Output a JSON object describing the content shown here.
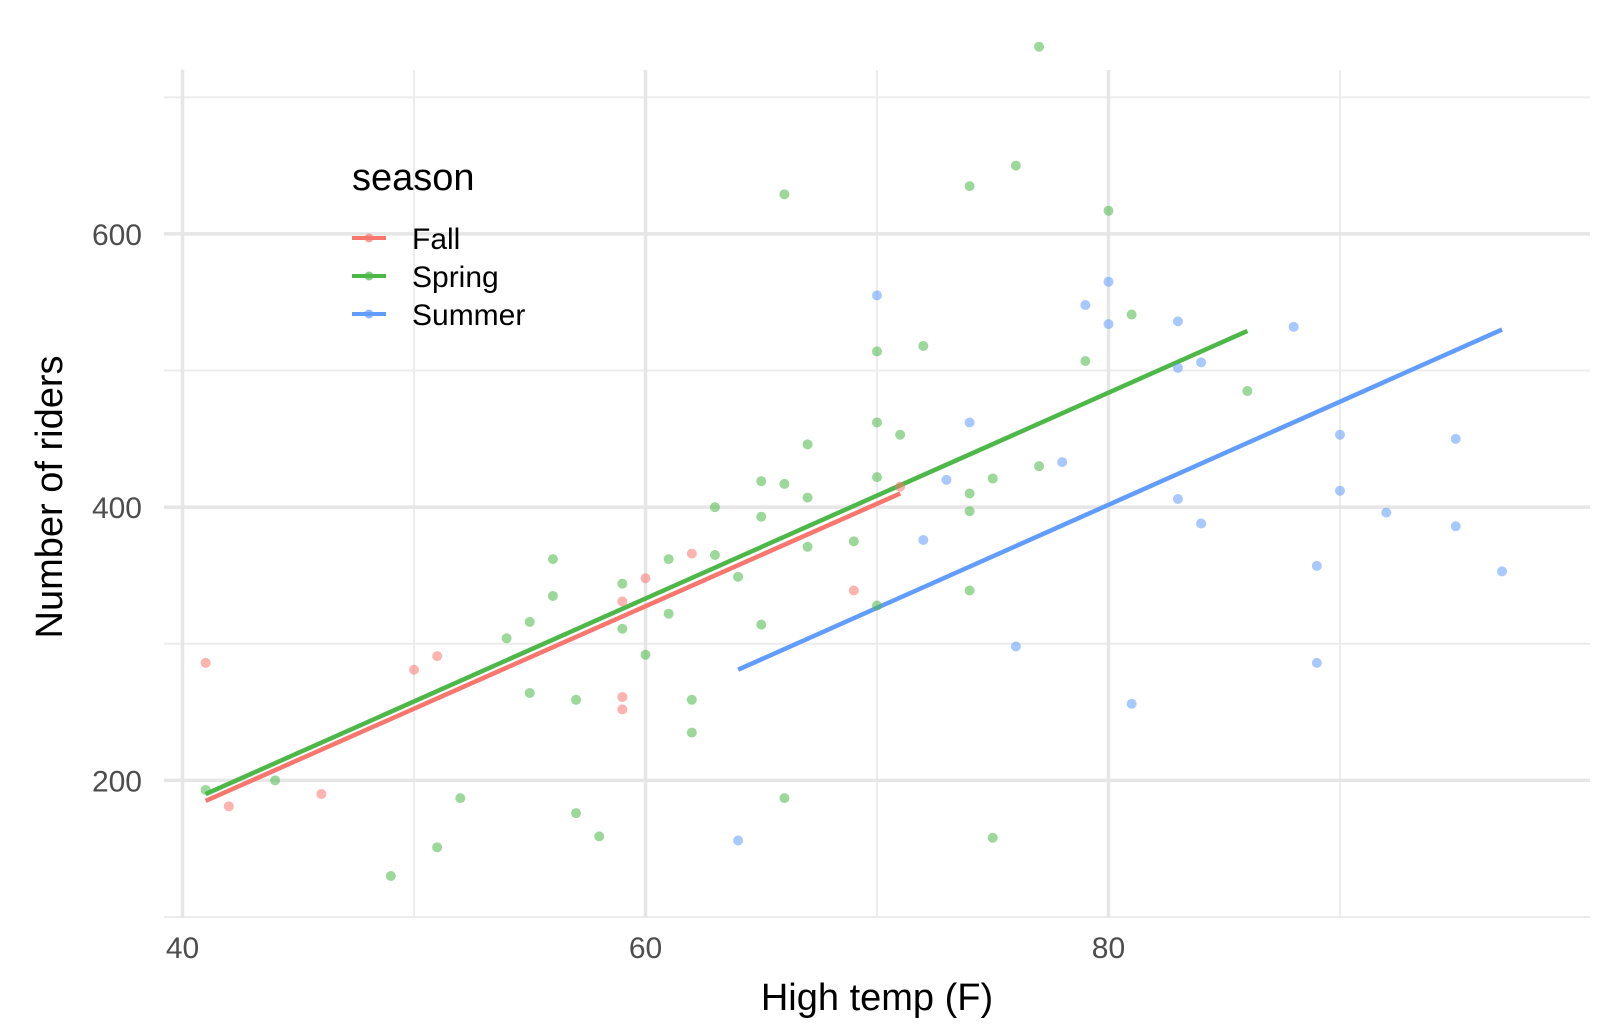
{
  "chart_data": {
    "type": "scatter",
    "xlabel": "High temp (F)",
    "ylabel": "Number of riders",
    "xlim": [
      39.2,
      100.8
    ],
    "ylim": [
      100,
      720
    ],
    "x_ticks": [
      {
        "value": 40,
        "label": "40"
      },
      {
        "value": 60,
        "label": "60"
      },
      {
        "value": 80,
        "label": "80"
      }
    ],
    "x_minor_ticks": [
      50,
      70,
      90
    ],
    "y_ticks": [
      {
        "value": 200,
        "label": "200"
      },
      {
        "value": 400,
        "label": "400"
      },
      {
        "value": 600,
        "label": "600"
      }
    ],
    "y_minor_ticks": [
      100,
      300,
      500,
      700
    ],
    "grid": true,
    "legend": {
      "title": "season",
      "placement": "top-left"
    },
    "series": [
      {
        "name": "Fall",
        "color": "#F8766D",
        "points": [
          [
            41,
            286
          ],
          [
            42,
            181
          ],
          [
            46,
            190
          ],
          [
            50,
            281
          ],
          [
            51,
            291
          ],
          [
            59,
            331
          ],
          [
            59,
            261
          ],
          [
            59,
            252
          ],
          [
            60,
            348
          ],
          [
            62,
            366
          ],
          [
            69,
            339
          ],
          [
            71,
            415
          ]
        ],
        "fit": [
          [
            41,
            185
          ],
          [
            71,
            410
          ]
        ]
      },
      {
        "name": "Spring",
        "color": "#4DB848",
        "points": [
          [
            41,
            193
          ],
          [
            44,
            200
          ],
          [
            49,
            130
          ],
          [
            51,
            151
          ],
          [
            52,
            187
          ],
          [
            54,
            304
          ],
          [
            55,
            316
          ],
          [
            55,
            264
          ],
          [
            56,
            362
          ],
          [
            56,
            335
          ],
          [
            57,
            176
          ],
          [
            57,
            259
          ],
          [
            58,
            159
          ],
          [
            59,
            344
          ],
          [
            59,
            311
          ],
          [
            60,
            292
          ],
          [
            61,
            362
          ],
          [
            61,
            322
          ],
          [
            62,
            259
          ],
          [
            62,
            235
          ],
          [
            63,
            400
          ],
          [
            63,
            365
          ],
          [
            64,
            349
          ],
          [
            65,
            419
          ],
          [
            65,
            393
          ],
          [
            65,
            314
          ],
          [
            66,
            629
          ],
          [
            66,
            417
          ],
          [
            66,
            187
          ],
          [
            67,
            446
          ],
          [
            67,
            407
          ],
          [
            67,
            371
          ],
          [
            69,
            375
          ],
          [
            70,
            514
          ],
          [
            70,
            462
          ],
          [
            70,
            422
          ],
          [
            70,
            328
          ],
          [
            71,
            453
          ],
          [
            72,
            518
          ],
          [
            74,
            635
          ],
          [
            74,
            410
          ],
          [
            74,
            397
          ],
          [
            74,
            339
          ],
          [
            75,
            421
          ],
          [
            75,
            158
          ],
          [
            76,
            650
          ],
          [
            77,
            737
          ],
          [
            77,
            430
          ],
          [
            79,
            507
          ],
          [
            80,
            617
          ],
          [
            81,
            541
          ],
          [
            86,
            485
          ]
        ],
        "fit": [
          [
            41,
            190
          ],
          [
            86,
            529
          ]
        ]
      },
      {
        "name": "Summer",
        "color": "#619CFF",
        "points": [
          [
            64,
            156
          ],
          [
            70,
            555
          ],
          [
            72,
            376
          ],
          [
            73,
            420
          ],
          [
            74,
            462
          ],
          [
            76,
            298
          ],
          [
            78,
            433
          ],
          [
            79,
            548
          ],
          [
            80,
            565
          ],
          [
            80,
            534
          ],
          [
            81,
            256
          ],
          [
            83,
            536
          ],
          [
            83,
            502
          ],
          [
            83,
            406
          ],
          [
            84,
            506
          ],
          [
            84,
            388
          ],
          [
            88,
            532
          ],
          [
            89,
            357
          ],
          [
            89,
            286
          ],
          [
            90,
            453
          ],
          [
            90,
            412
          ],
          [
            92,
            396
          ],
          [
            95,
            450
          ],
          [
            95,
            386
          ],
          [
            97,
            353
          ]
        ],
        "fit": [
          [
            64,
            281
          ],
          [
            97,
            530
          ]
        ]
      }
    ]
  }
}
